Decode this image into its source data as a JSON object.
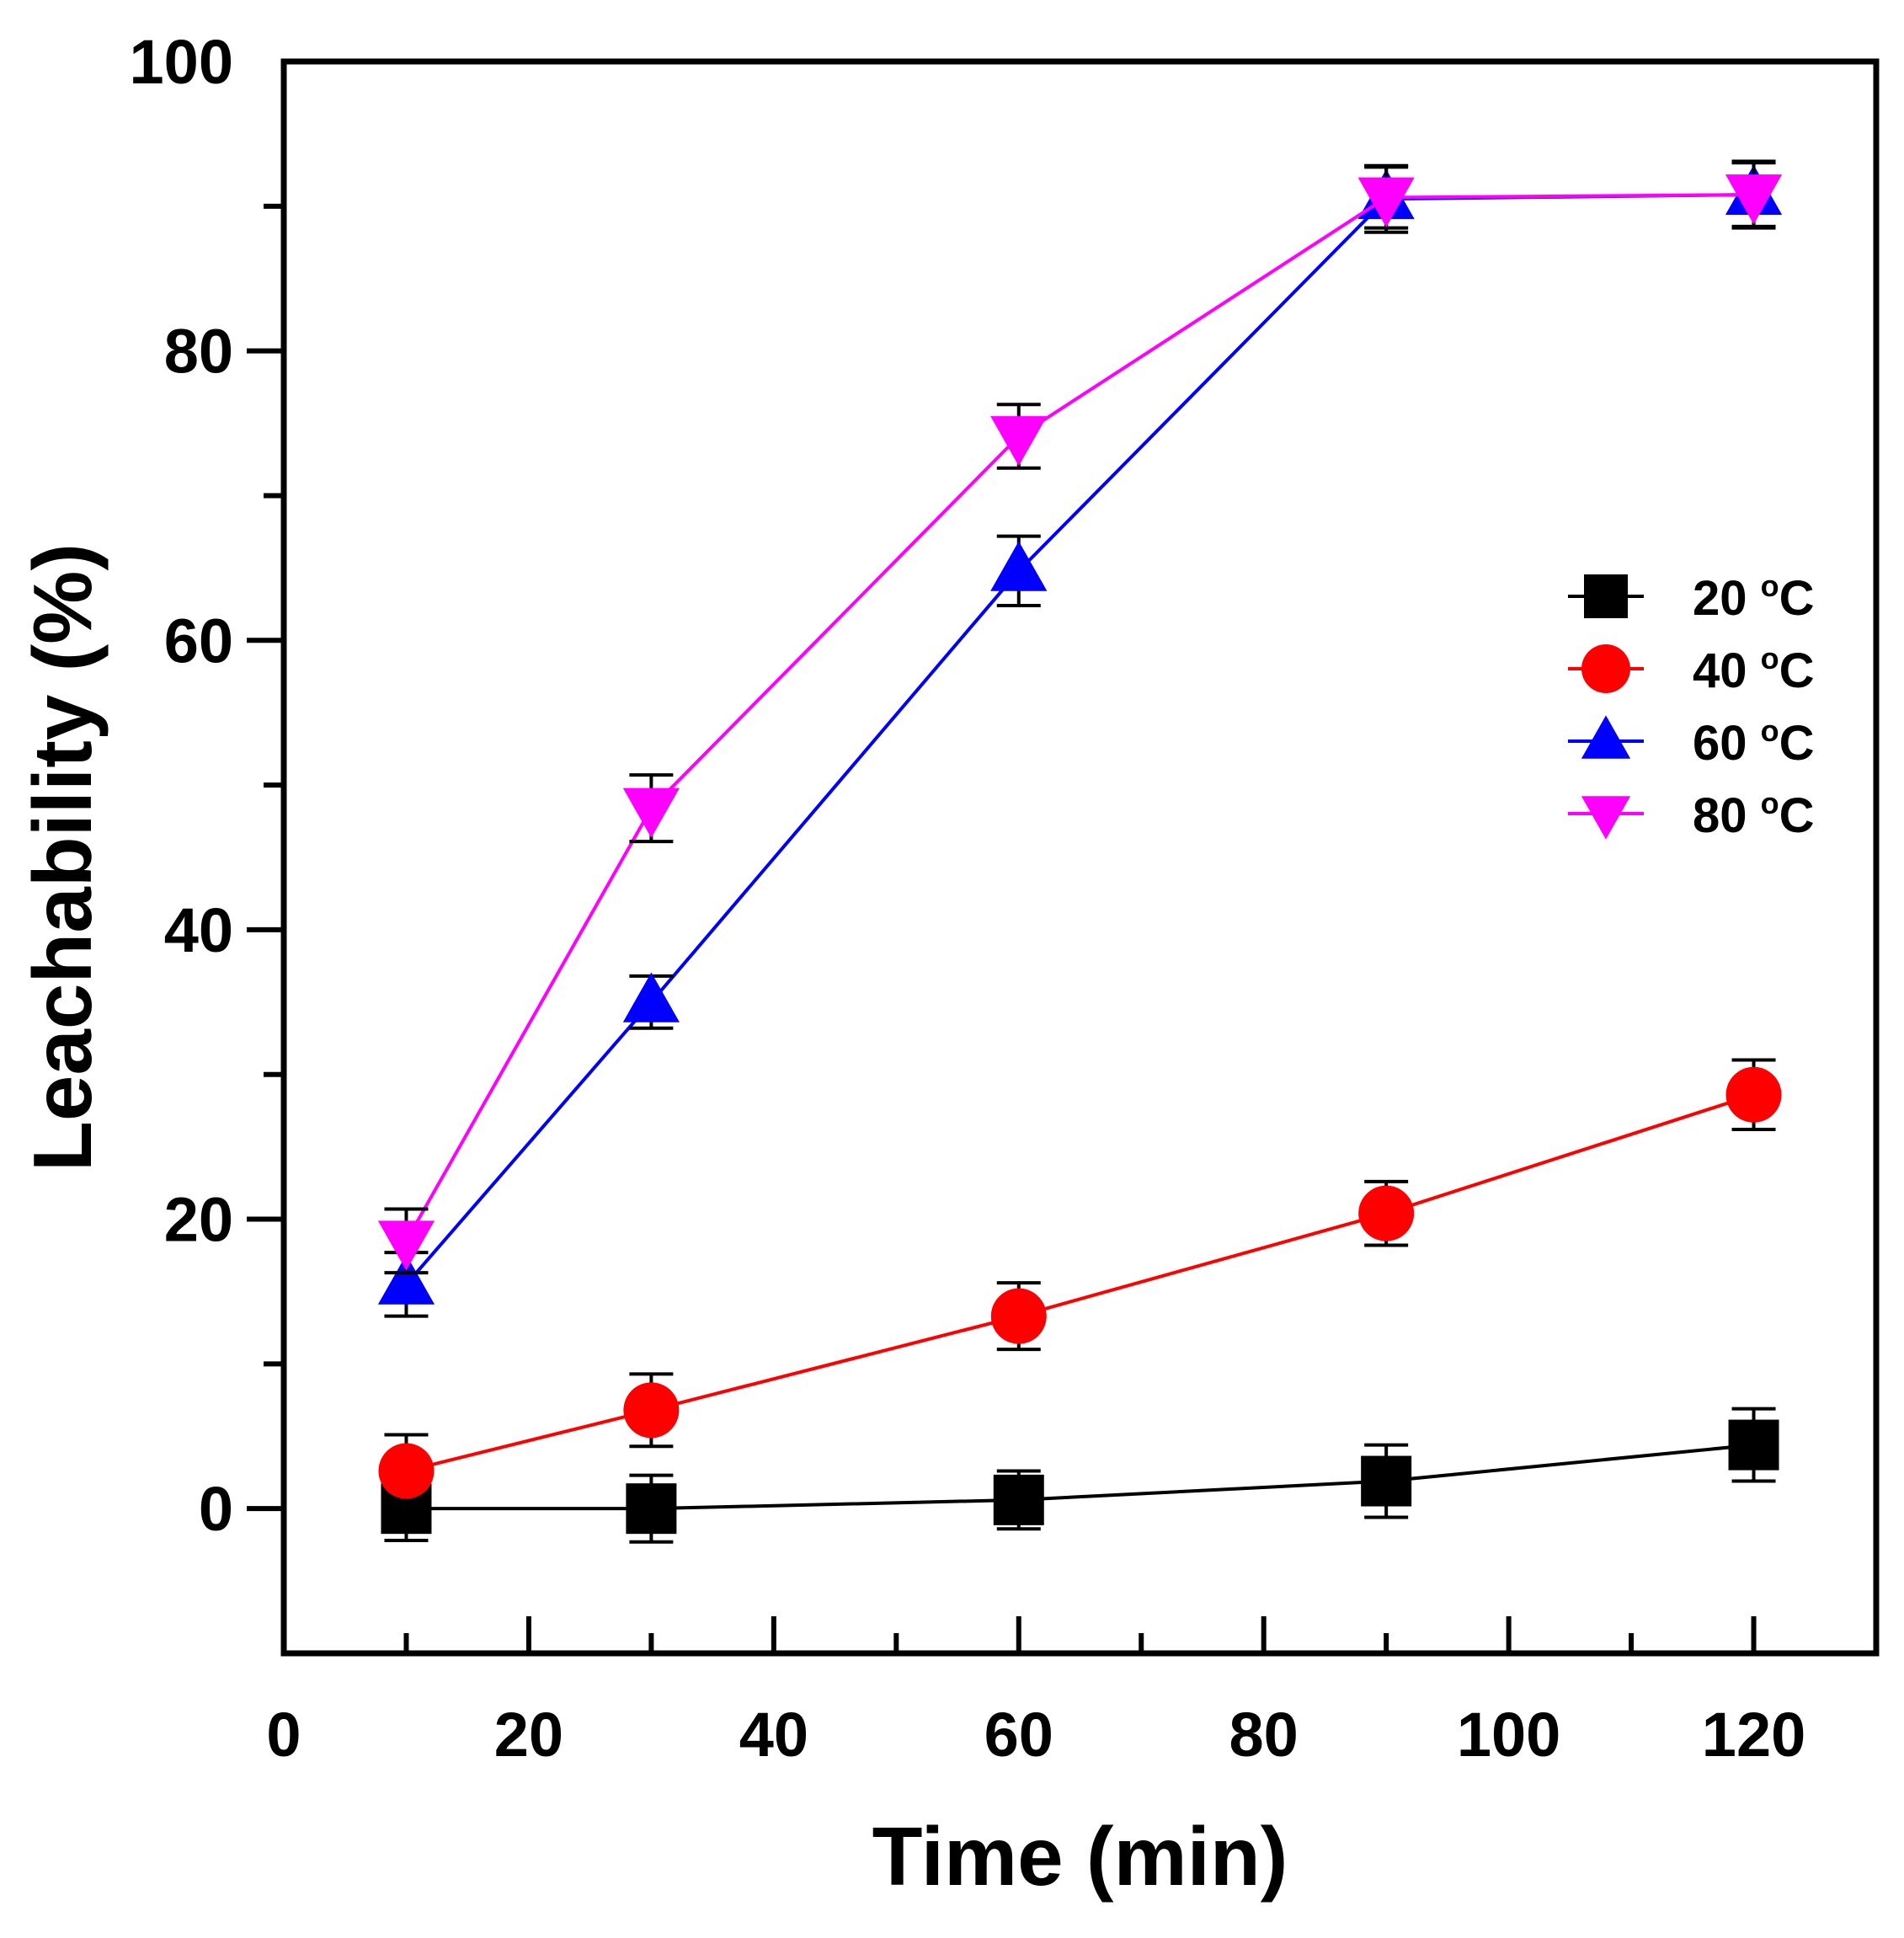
{
  "chart_data": {
    "type": "line",
    "title": "",
    "xlabel": "Time (min)",
    "ylabel": "Leachability (%)",
    "xlim": [
      0,
      130
    ],
    "ylim": [
      -10,
      100
    ],
    "x_ticks": [
      0,
      20,
      40,
      60,
      80,
      100,
      120
    ],
    "x_minor_ticks": [
      10,
      30,
      50,
      70,
      90,
      110
    ],
    "y_ticks": [
      0,
      20,
      40,
      60,
      80,
      100
    ],
    "y_minor_ticks": [
      10,
      30,
      50,
      70,
      90
    ],
    "grid": false,
    "legend_position": "right-middle",
    "x": [
      10,
      30,
      60,
      90,
      120
    ],
    "series": [
      {
        "name": "20 °C",
        "label_num": "20",
        "label_unit": "C",
        "label_deg": "o",
        "color": "#000000",
        "marker": "square",
        "values": [
          0.0,
          0.0,
          0.6,
          1.9,
          4.4
        ],
        "errors": [
          2.2,
          2.3,
          2.0,
          2.5,
          2.5
        ]
      },
      {
        "name": "40 °C",
        "label_num": "40",
        "label_unit": "C",
        "label_deg": "o",
        "color": "#ff0000",
        "marker": "circle",
        "values": [
          2.6,
          6.8,
          13.3,
          20.4,
          28.6
        ],
        "errors": [
          2.5,
          2.5,
          2.3,
          2.2,
          2.4
        ]
      },
      {
        "name": "60 °C",
        "label_num": "60",
        "label_unit": "C",
        "label_deg": "o",
        "color": "#0000ff",
        "marker": "triangle-up",
        "values": [
          15.5,
          35.0,
          64.8,
          90.5,
          90.8
        ],
        "errors": [
          2.2,
          1.8,
          2.4,
          2.3,
          2.3
        ]
      },
      {
        "name": "80 °C",
        "label_num": "80",
        "label_unit": "C",
        "label_deg": "o",
        "color": "#ff00ff",
        "marker": "triangle-down",
        "values": [
          18.5,
          48.4,
          74.1,
          90.6,
          90.8
        ],
        "errors": [
          2.2,
          2.3,
          2.2,
          2.1,
          2.2
        ]
      }
    ]
  }
}
